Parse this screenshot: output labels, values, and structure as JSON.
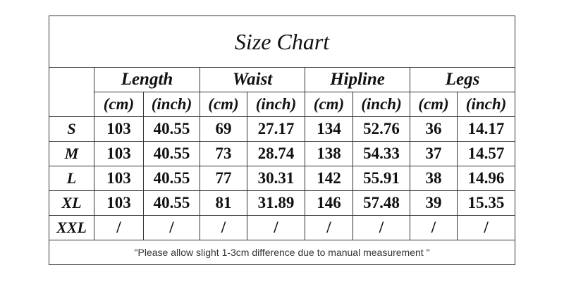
{
  "title": "Size Chart",
  "groups": [
    "Length",
    "Waist",
    "Hipline",
    "Legs"
  ],
  "units": [
    "(cm)",
    "(inch)",
    "(cm)",
    "(inch)",
    "(cm)",
    "(inch)",
    "(cm)",
    "(inch)"
  ],
  "rows": [
    [
      "S",
      "103",
      "40.55",
      "69",
      "27.17",
      "134",
      "52.76",
      "36",
      "14.17"
    ],
    [
      "M",
      "103",
      "40.55",
      "73",
      "28.74",
      "138",
      "54.33",
      "37",
      "14.57"
    ],
    [
      "L",
      "103",
      "40.55",
      "77",
      "30.31",
      "142",
      "55.91",
      "38",
      "14.96"
    ],
    [
      "XL",
      "103",
      "40.55",
      "81",
      "31.89",
      "146",
      "57.48",
      "39",
      "15.35"
    ],
    [
      "XXL",
      "/",
      "/",
      "/",
      "/",
      "/",
      "/",
      "/",
      "/"
    ]
  ],
  "note": "\"Please allow slight 1-3cm difference due to manual measurement \""
}
